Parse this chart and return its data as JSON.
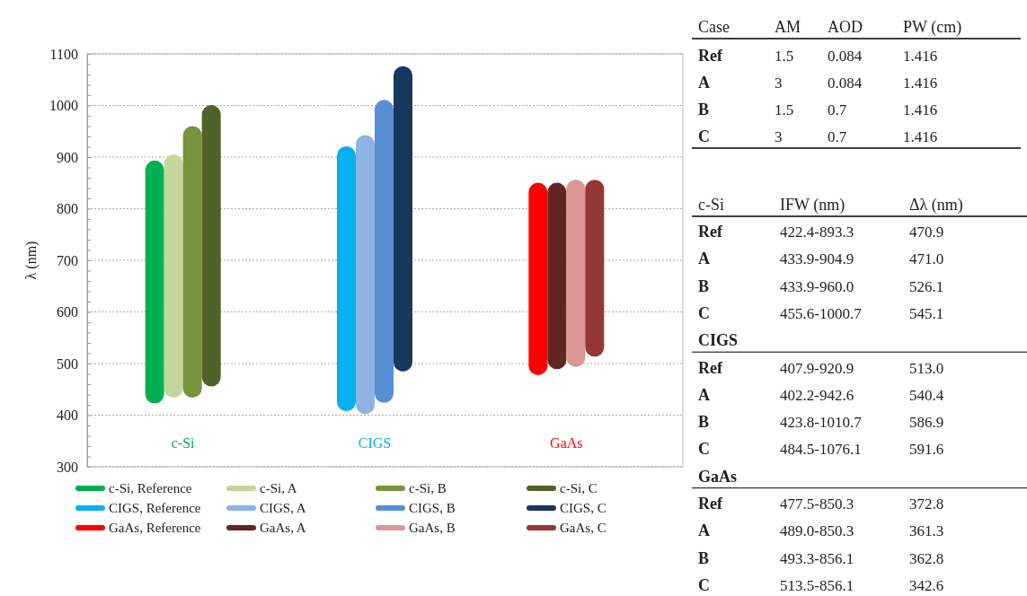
{
  "chart_data": [
    {
      "type": "bar",
      "ylabel": "λ (nm)",
      "categories": [
        "c-Si",
        "CIGS",
        "GaAs"
      ],
      "ylim": [
        300,
        1100
      ],
      "yticks": [
        300,
        {
          "value": 320,
          "label": null
        },
        {
          "value": 340,
          "label": null
        },
        {
          "value": 360,
          "label": null
        },
        {
          "value": 380,
          "label": null
        },
        400,
        {
          "value": 420,
          "label": null
        },
        {
          "value": 440,
          "label": null
        },
        {
          "value": 460,
          "label": null
        },
        {
          "value": 480,
          "label": null
        },
        500,
        {
          "value": 520,
          "label": null
        },
        {
          "value": 540,
          "label": null
        },
        {
          "value": 560,
          "label": null
        },
        {
          "value": 580,
          "label": null
        },
        600,
        {
          "value": 620,
          "label": null
        },
        {
          "value": 640,
          "label": null
        },
        {
          "value": 660,
          "label": null
        },
        {
          "value": 680,
          "label": null
        },
        700,
        {
          "value": 720,
          "label": null
        },
        {
          "value": 740,
          "label": null
        },
        {
          "value": 760,
          "label": null
        },
        {
          "value": 780,
          "label": null
        },
        800,
        {
          "value": 820,
          "label": null
        },
        {
          "value": 840,
          "label": null
        },
        {
          "value": 860,
          "label": null
        },
        {
          "value": 880,
          "label": null
        },
        900,
        {
          "value": 920,
          "label": null
        },
        {
          "value": 940,
          "label": null
        },
        {
          "value": 960,
          "label": null
        },
        {
          "value": 980,
          "label": null
        },
        1000,
        {
          "value": 1020,
          "label": null
        },
        {
          "value": 1040,
          "label": null
        },
        {
          "value": 1060,
          "label": null
        },
        {
          "value": 1080,
          "label": null
        },
        1100
      ],
      "grid": "y",
      "legend": "bottom",
      "series": [
        {
          "name": "c-Si, Reference",
          "color": "#00b050",
          "base": [
            422.4,
            null,
            null
          ],
          "values": [
            470.9,
            null,
            null
          ]
        },
        {
          "name": "c-Si, A",
          "color": "#c3d69b",
          "base": [
            433.9,
            null,
            null
          ],
          "values": [
            471.0,
            null,
            null
          ]
        },
        {
          "name": "c-Si, B",
          "color": "#77933c",
          "base": [
            433.9,
            null,
            null
          ],
          "values": [
            526.1,
            null,
            null
          ]
        },
        {
          "name": "c-Si, C",
          "color": "#4f6228",
          "base": [
            455.6,
            null,
            null
          ],
          "values": [
            545.1,
            null,
            null
          ]
        },
        {
          "name": "CIGS, Reference",
          "color": "#00b0f0",
          "base": [
            null,
            407.9,
            null
          ],
          "values": [
            null,
            513.0,
            null
          ]
        },
        {
          "name": "CIGS, A",
          "color": "#8db3e2",
          "base": [
            null,
            402.2,
            null
          ],
          "values": [
            null,
            540.4,
            null
          ]
        },
        {
          "name": "CIGS, B",
          "color": "#558ed5",
          "base": [
            null,
            423.8,
            null
          ],
          "values": [
            null,
            586.9,
            null
          ]
        },
        {
          "name": "CIGS, C",
          "color": "#17375e",
          "base": [
            null,
            484.5,
            null
          ],
          "values": [
            null,
            591.6,
            null
          ]
        },
        {
          "name": "GaAs, Reference",
          "color": "#ff0000",
          "base": [
            null,
            null,
            477.5
          ],
          "values": [
            null,
            null,
            372.8
          ]
        },
        {
          "name": "GaAs, A",
          "color": "#632523",
          "base": [
            null,
            null,
            489.0
          ],
          "values": [
            null,
            null,
            361.3
          ]
        },
        {
          "name": "GaAs, B",
          "color": "#d99694",
          "base": [
            null,
            null,
            493.3
          ],
          "values": [
            null,
            null,
            362.8
          ]
        },
        {
          "name": "GaAs, C",
          "color": "#953735",
          "base": [
            null,
            null,
            513.5
          ],
          "values": [
            null,
            null,
            342.6
          ]
        }
      ]
    },
    {
      "type": "other",
      "categories": [
        "Case",
        "AM",
        "AOD",
        "PW (cm)"
      ],
      "y_categories": [
        "Ref",
        "A",
        "B",
        "C"
      ],
      "cell_labels": [
        [
          "1.5",
          "0.084",
          "1.416"
        ],
        [
          "3",
          "0.084",
          "1.416"
        ],
        [
          "1.5",
          "0.7",
          "1.416"
        ],
        [
          "3",
          "0.7",
          "1.416"
        ]
      ]
    },
    {
      "type": "other",
      "categories": [
        "c-Si",
        "IFW (nm)",
        "Δλ (nm)"
      ],
      "y_categories": [
        "Ref",
        "A",
        "B",
        "C",
        "CIGS",
        "Ref",
        "A",
        "B",
        "C",
        "GaAs",
        "Ref",
        "A",
        "B",
        "C"
      ],
      "cell_labels": [
        [
          "422.4-893.3",
          "470.9"
        ],
        [
          "433.9-904.9",
          "471.0"
        ],
        [
          "433.9-960.0",
          "526.1"
        ],
        [
          "455.6-1000.7",
          "545.1"
        ],
        [
          null,
          null
        ],
        [
          "407.9-920.9",
          "513.0"
        ],
        [
          "402.2-942.6",
          "540.4"
        ],
        [
          "423.8-1010.7",
          "586.9"
        ],
        [
          "484.5-1076.1",
          "591.6"
        ],
        [
          null,
          null
        ],
        [
          "477.5-850.3",
          "372.8"
        ],
        [
          "489.0-850.3",
          "361.3"
        ],
        [
          "493.3-856.1",
          "362.8"
        ],
        [
          "513.5-856.1",
          "342.6"
        ]
      ]
    }
  ]
}
